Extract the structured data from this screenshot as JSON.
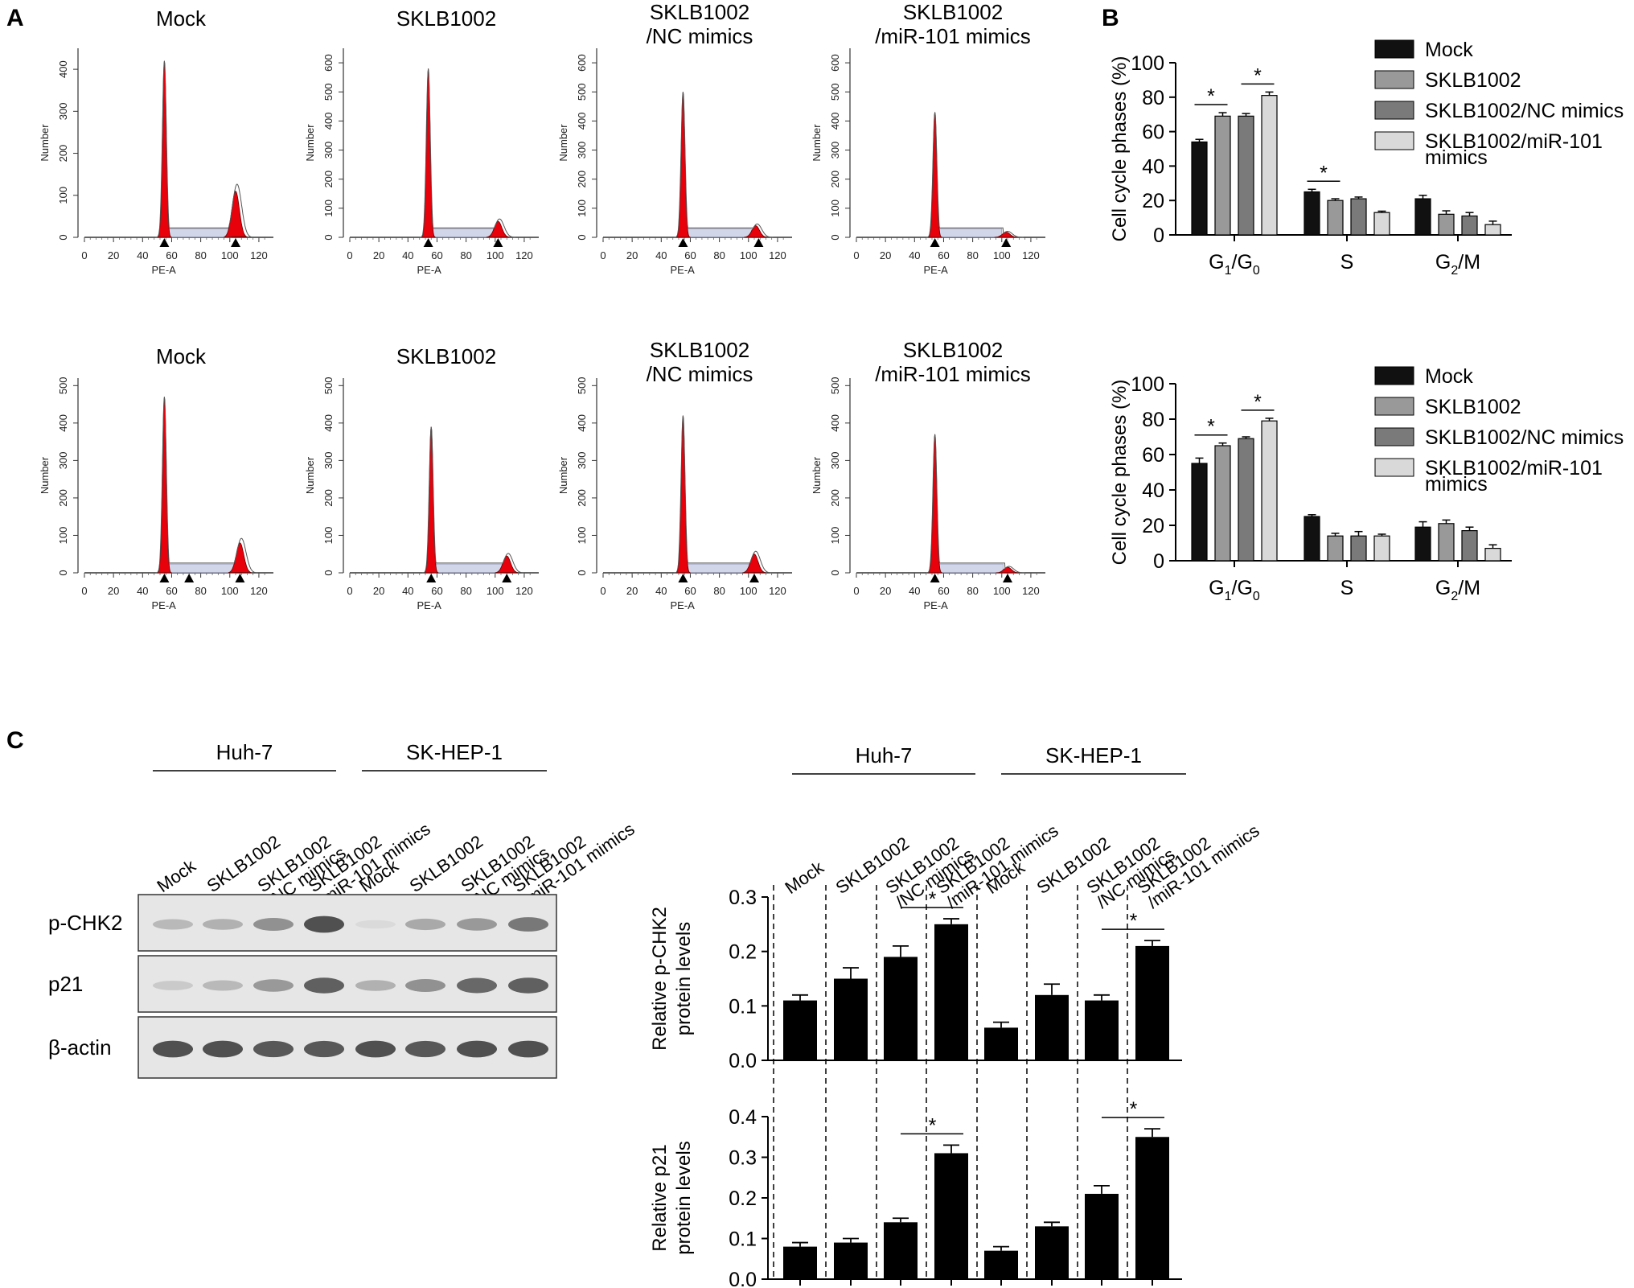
{
  "panel_labels": {
    "a": "A",
    "b": "B",
    "c": "C"
  },
  "colors": {
    "peak": "#e8000b",
    "bar_black": "#111111",
    "bar_mid": "#999999",
    "bar_dark": "#7a7a7a",
    "bar_light": "#d9d9d9"
  },
  "flow": {
    "xlabel": "PE-A",
    "ylabel": "Number",
    "xticks": [
      "0",
      "20",
      "40",
      "60",
      "80",
      "100",
      "120"
    ],
    "rows": [
      {
        "panels": [
          {
            "title": [
              "Mock"
            ],
            "yticks": [
              "0",
              "100",
              "200",
              "300",
              "400"
            ],
            "ymax": 450,
            "g1": 420,
            "g2": 110,
            "g2pos": 104,
            "markers": [
              55,
              104
            ]
          },
          {
            "title": [
              "SKLB1002"
            ],
            "yticks": [
              "0",
              "100",
              "200",
              "300",
              "400",
              "500",
              "600"
            ],
            "ymax": 650,
            "g1": 580,
            "g2": 55,
            "g2pos": 102,
            "markers": [
              54,
              102
            ]
          },
          {
            "title": [
              "SKLB1002",
              "/NC mimics"
            ],
            "yticks": [
              "0",
              "100",
              "200",
              "300",
              "400",
              "500",
              "600"
            ],
            "ymax": 650,
            "g1": 500,
            "g2": 40,
            "g2pos": 105,
            "markers": [
              55,
              107
            ]
          },
          {
            "title": [
              "SKLB1002",
              "/miR-101 mimics"
            ],
            "yticks": [
              "0",
              "100",
              "200",
              "300",
              "400",
              "500",
              "600"
            ],
            "ymax": 650,
            "g1": 430,
            "g2": 18,
            "g2pos": 103,
            "markers": [
              54,
              103
            ]
          }
        ]
      },
      {
        "panels": [
          {
            "title": [
              "Mock"
            ],
            "yticks": [
              "0",
              "100",
              "200",
              "300",
              "400",
              "500"
            ],
            "ymax": 520,
            "g1": 470,
            "g2": 80,
            "g2pos": 107,
            "markers": [
              55,
              72,
              107
            ]
          },
          {
            "title": [
              "SKLB1002"
            ],
            "yticks": [
              "0",
              "100",
              "200",
              "300",
              "400",
              "500"
            ],
            "ymax": 520,
            "g1": 390,
            "g2": 45,
            "g2pos": 108,
            "markers": [
              56,
              108
            ]
          },
          {
            "title": [
              "SKLB1002",
              "/NC mimics"
            ],
            "yticks": [
              "0",
              "100",
              "200",
              "300",
              "400",
              "500"
            ],
            "ymax": 520,
            "g1": 420,
            "g2": 50,
            "g2pos": 104,
            "markers": [
              55,
              104
            ]
          },
          {
            "title": [
              "SKLB1002",
              "/miR-101 mimics"
            ],
            "yticks": [
              "0",
              "100",
              "200",
              "300",
              "400",
              "500"
            ],
            "ymax": 520,
            "g1": 370,
            "g2": 15,
            "g2pos": 104,
            "markers": [
              54,
              104
            ]
          }
        ]
      }
    ]
  },
  "chart_data": [
    {
      "type": "bar",
      "panel": "B-top",
      "ylabel": "Cell cycle phases (%)",
      "ylim": [
        0,
        100
      ],
      "yticks": [
        "0",
        "20",
        "40",
        "60",
        "80",
        "100"
      ],
      "categories": [
        {
          "main": "G",
          "sub1": "1",
          "mid": "/G",
          "sub2": "0"
        },
        {
          "main": "S",
          "sub1": "",
          "mid": "",
          "sub2": ""
        },
        {
          "main": "G",
          "sub1": "2",
          "mid": "/M",
          "sub2": ""
        }
      ],
      "series": [
        {
          "name": "Mock",
          "values": [
            54,
            25,
            21
          ],
          "errors": [
            1.5,
            1.5,
            2
          ]
        },
        {
          "name": "SKLB1002",
          "values": [
            69,
            20,
            12
          ],
          "errors": [
            2,
            1,
            2
          ]
        },
        {
          "name": "SKLB1002/NC mimics",
          "values": [
            69,
            21,
            11
          ],
          "errors": [
            1.5,
            1,
            2
          ]
        },
        {
          "name": "SKLB1002/miR-101 mimics",
          "values": [
            81,
            13,
            6
          ],
          "errors": [
            2,
            0.8,
            2
          ]
        }
      ],
      "significance": [
        {
          "cat": 0,
          "from": 0,
          "to": 1
        },
        {
          "cat": 0,
          "from": 2,
          "to": 3
        },
        {
          "cat": 1,
          "from": 0,
          "to": 1
        }
      ]
    },
    {
      "type": "bar",
      "panel": "B-bottom",
      "ylabel": "Cell cycle phases (%)",
      "ylim": [
        0,
        100
      ],
      "yticks": [
        "0",
        "20",
        "40",
        "60",
        "80",
        "100"
      ],
      "categories": [
        {
          "main": "G",
          "sub1": "1",
          "mid": "/G",
          "sub2": "0"
        },
        {
          "main": "S",
          "sub1": "",
          "mid": "",
          "sub2": ""
        },
        {
          "main": "G",
          "sub1": "2",
          "mid": "/M",
          "sub2": ""
        }
      ],
      "series": [
        {
          "name": "Mock",
          "values": [
            55,
            25,
            19
          ],
          "errors": [
            3,
            1,
            3
          ]
        },
        {
          "name": "SKLB1002",
          "values": [
            65,
            14,
            21
          ],
          "errors": [
            1.5,
            1.5,
            2
          ]
        },
        {
          "name": "SKLB1002/NC mimics",
          "values": [
            69,
            14,
            17
          ],
          "errors": [
            1,
            2.5,
            2
          ]
        },
        {
          "name": "SKLB1002/miR-101 mimics",
          "values": [
            79,
            14,
            7
          ],
          "errors": [
            1.5,
            1,
            2
          ]
        }
      ],
      "significance": [
        {
          "cat": 0,
          "from": 0,
          "to": 1
        },
        {
          "cat": 0,
          "from": 2,
          "to": 3
        }
      ]
    },
    {
      "type": "bar",
      "panel": "C-top",
      "ylabel": [
        "Relative p-CHK2",
        "protein levels"
      ],
      "ylim": [
        0,
        0.3
      ],
      "yticks": [
        "0.0",
        "0.1",
        "0.2",
        "0.3"
      ],
      "values": [
        0.11,
        0.15,
        0.19,
        0.25,
        0.06,
        0.12,
        0.11,
        0.21
      ],
      "errors": [
        0.01,
        0.02,
        0.02,
        0.01,
        0.01,
        0.02,
        0.01,
        0.01
      ],
      "significance": [
        {
          "from": 2,
          "to": 3
        },
        {
          "from": 6,
          "to": 7
        }
      ]
    },
    {
      "type": "bar",
      "panel": "C-bottom",
      "ylabel": [
        "Relative p21",
        "protein levels"
      ],
      "ylim": [
        0,
        0.4
      ],
      "yticks": [
        "0.0",
        "0.1",
        "0.2",
        "0.3",
        "0.4"
      ],
      "values": [
        0.08,
        0.09,
        0.14,
        0.31,
        0.07,
        0.13,
        0.21,
        0.35
      ],
      "errors": [
        0.01,
        0.01,
        0.01,
        0.02,
        0.01,
        0.01,
        0.02,
        0.02
      ],
      "significance": [
        {
          "from": 2,
          "to": 3
        },
        {
          "from": 6,
          "to": 7
        }
      ]
    }
  ],
  "western": {
    "groups": [
      "Huh-7",
      "SK-HEP-1"
    ],
    "lanes": [
      [
        "Mock"
      ],
      [
        "SKLB1002"
      ],
      [
        "SKLB1002",
        "/NC mimics"
      ],
      [
        "SKLB1002",
        "/miR-101 mimics"
      ],
      [
        "Mock"
      ],
      [
        "SKLB1002"
      ],
      [
        "SKLB1002",
        "/NC mimics"
      ],
      [
        "SKLB1002",
        "/miR-101 mimics"
      ]
    ],
    "blots": [
      {
        "label": "p-CHK2",
        "intensity": [
          0.25,
          0.3,
          0.5,
          0.9,
          0.05,
          0.35,
          0.45,
          0.65
        ]
      },
      {
        "label": "p21",
        "intensity": [
          0.15,
          0.25,
          0.45,
          0.8,
          0.3,
          0.5,
          0.75,
          0.8
        ]
      },
      {
        "label": "β-actin",
        "intensity": [
          0.9,
          0.9,
          0.85,
          0.85,
          0.9,
          0.85,
          0.9,
          0.9
        ]
      }
    ]
  },
  "asterisk": "*"
}
